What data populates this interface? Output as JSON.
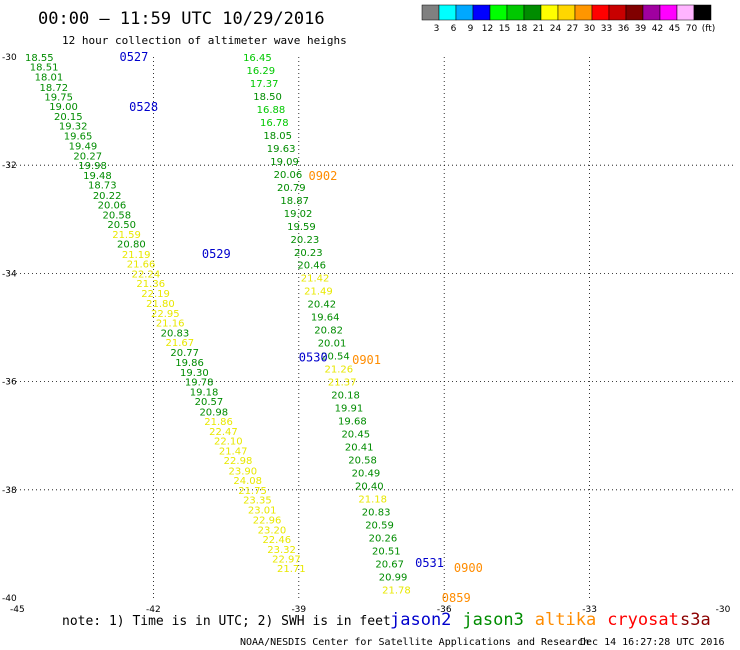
{
  "header": {
    "title": "00:00 — 11:59 UTC 10/29/2016",
    "subtitle": "12 hour collection of altimeter wave heighs"
  },
  "color_scale": {
    "colors": [
      "#808080",
      "#00ffff",
      "#00a8ff",
      "#0000ff",
      "#00ff00",
      "#00c800",
      "#008c00",
      "#ffff00",
      "#ffd700",
      "#ff9600",
      "#ff0000",
      "#c80000",
      "#800000",
      "#a000a0",
      "#ff00ff",
      "#ffb4ff",
      "#000000"
    ],
    "labels": [
      "3",
      "6",
      "9",
      "12",
      "15",
      "18",
      "21",
      "24",
      "27",
      "30",
      "33",
      "36",
      "39",
      "42",
      "45",
      "70",
      "(ft)"
    ]
  },
  "note": "note: 1) Time is in UTC; 2) SWH is in feet",
  "legend": [
    {
      "name": "jason2",
      "color": "#0000cc"
    },
    {
      "name": "jason3",
      "color": "#008c00"
    },
    {
      "name": "altika",
      "color": "#ff8c00"
    },
    {
      "name": "cryosat",
      "color": "#ff0000"
    },
    {
      "name": "s3a",
      "color": "#8b0000"
    }
  ],
  "credit": "NOAA/NESDIS Center for Satellite Applications and Research",
  "timestamp": "Dec 14 16:27:28 UTC 2016",
  "chart_data": {
    "type": "scatter",
    "xlim": [
      -45,
      -30
    ],
    "ylim": [
      -40,
      -30
    ],
    "x_ticks": [
      -45,
      -42,
      -39,
      -36,
      -33,
      -30
    ],
    "x_tick_labels": [
      "-45",
      "-42",
      "-39",
      "-36",
      "-33",
      "-30"
    ],
    "y_ticks": [
      -30,
      -32,
      -34,
      -36,
      -38,
      -40
    ],
    "y_tick_labels": [
      "-30",
      "-32",
      "-34",
      "-36",
      "-38",
      "-40"
    ],
    "grid": true,
    "track_labels": [
      {
        "text": "0527",
        "lon": -42.7,
        "lat": -30.0,
        "color": "#0000cc"
      },
      {
        "text": "0528",
        "lon": -42.5,
        "lat": -30.92,
        "color": "#0000cc"
      },
      {
        "text": "0529",
        "lon": -41.0,
        "lat": -33.64,
        "color": "#0000cc"
      },
      {
        "text": "0530",
        "lon": -39.0,
        "lat": -35.55,
        "color": "#0000cc"
      },
      {
        "text": "0531",
        "lon": -36.6,
        "lat": -39.35,
        "color": "#0000cc"
      },
      {
        "text": "0902",
        "lon": -38.8,
        "lat": -32.2,
        "color": "#ff8c00"
      },
      {
        "text": "0901",
        "lon": -37.9,
        "lat": -35.6,
        "color": "#ff8c00"
      },
      {
        "text": "0900",
        "lon": -35.8,
        "lat": -39.45,
        "color": "#ff8c00"
      },
      {
        "text": "0859",
        "lon": -36.05,
        "lat": -40.0,
        "color": "#ff8c00"
      }
    ],
    "series": [
      {
        "name": "",
        "points": [
          {
            "lon": -44.65,
            "lat": -30.0,
            "value": "18.55",
            "color": "#008c00"
          },
          {
            "lon": -44.55,
            "lat": -30.18,
            "value": "18.51",
            "color": "#008c00"
          },
          {
            "lon": -44.45,
            "lat": -30.36,
            "value": "18.01",
            "color": "#008c00"
          },
          {
            "lon": -44.35,
            "lat": -30.55,
            "value": "18.72",
            "color": "#008c00"
          },
          {
            "lon": -44.25,
            "lat": -30.73,
            "value": "19.75",
            "color": "#008c00"
          },
          {
            "lon": -44.15,
            "lat": -30.91,
            "value": "19.00",
            "color": "#008c00"
          },
          {
            "lon": -44.05,
            "lat": -31.09,
            "value": "20.15",
            "color": "#008c00"
          },
          {
            "lon": -43.95,
            "lat": -31.27,
            "value": "19.32",
            "color": "#008c00"
          },
          {
            "lon": -43.85,
            "lat": -31.45,
            "value": "19.65",
            "color": "#008c00"
          },
          {
            "lon": -43.75,
            "lat": -31.64,
            "value": "19.49",
            "color": "#008c00"
          },
          {
            "lon": -43.65,
            "lat": -31.82,
            "value": "20.27",
            "color": "#008c00"
          },
          {
            "lon": -43.55,
            "lat": -32.0,
            "value": "19.98",
            "color": "#008c00"
          },
          {
            "lon": -43.45,
            "lat": -32.18,
            "value": "19.48",
            "color": "#008c00"
          },
          {
            "lon": -43.35,
            "lat": -32.36,
            "value": "18.73",
            "color": "#008c00"
          },
          {
            "lon": -43.25,
            "lat": -32.55,
            "value": "20.22",
            "color": "#008c00"
          },
          {
            "lon": -43.15,
            "lat": -32.73,
            "value": "20.06",
            "color": "#008c00"
          },
          {
            "lon": -43.05,
            "lat": -32.91,
            "value": "20.58",
            "color": "#008c00"
          },
          {
            "lon": -42.95,
            "lat": -33.09,
            "value": "20.50",
            "color": "#008c00"
          },
          {
            "lon": -42.85,
            "lat": -33.27,
            "value": "21.59",
            "color": "#e8e800"
          },
          {
            "lon": -42.75,
            "lat": -33.45,
            "value": "20.80",
            "color": "#008c00"
          },
          {
            "lon": -42.65,
            "lat": -33.64,
            "value": "21.19",
            "color": "#e8e800"
          },
          {
            "lon": -42.55,
            "lat": -33.82,
            "value": "21.66",
            "color": "#e8e800"
          },
          {
            "lon": -42.45,
            "lat": -34.0,
            "value": "22.24",
            "color": "#e8e800"
          },
          {
            "lon": -42.35,
            "lat": -34.18,
            "value": "21.36",
            "color": "#e8e800"
          },
          {
            "lon": -42.25,
            "lat": -34.36,
            "value": "22.19",
            "color": "#e8e800"
          },
          {
            "lon": -42.15,
            "lat": -34.55,
            "value": "21.80",
            "color": "#e8e800"
          },
          {
            "lon": -42.05,
            "lat": -34.73,
            "value": "22.95",
            "color": "#e8e800"
          },
          {
            "lon": -41.95,
            "lat": -34.91,
            "value": "21.16",
            "color": "#e8e800"
          },
          {
            "lon": -41.85,
            "lat": -35.09,
            "value": "20.83",
            "color": "#008c00"
          },
          {
            "lon": -41.75,
            "lat": -35.27,
            "value": "21.67",
            "color": "#e8e800"
          },
          {
            "lon": -41.65,
            "lat": -35.45,
            "value": "20.77",
            "color": "#008c00"
          },
          {
            "lon": -41.55,
            "lat": -35.64,
            "value": "19.86",
            "color": "#008c00"
          },
          {
            "lon": -41.45,
            "lat": -35.82,
            "value": "19.30",
            "color": "#008c00"
          },
          {
            "lon": -41.35,
            "lat": -36.0,
            "value": "19.78",
            "color": "#008c00"
          },
          {
            "lon": -41.25,
            "lat": -36.18,
            "value": "19.18",
            "color": "#008c00"
          },
          {
            "lon": -41.15,
            "lat": -36.36,
            "value": "20.57",
            "color": "#008c00"
          },
          {
            "lon": -41.05,
            "lat": -36.55,
            "value": "20.98",
            "color": "#008c00"
          },
          {
            "lon": -40.95,
            "lat": -36.73,
            "value": "21.86",
            "color": "#e8e800"
          },
          {
            "lon": -40.85,
            "lat": -36.91,
            "value": "22.47",
            "color": "#e8e800"
          },
          {
            "lon": -40.75,
            "lat": -37.09,
            "value": "22.10",
            "color": "#e8e800"
          },
          {
            "lon": -40.65,
            "lat": -37.27,
            "value": "21.47",
            "color": "#e8e800"
          },
          {
            "lon": -40.55,
            "lat": -37.45,
            "value": "22.98",
            "color": "#e8e800"
          },
          {
            "lon": -40.45,
            "lat": -37.64,
            "value": "23.90",
            "color": "#e8e800"
          },
          {
            "lon": -40.35,
            "lat": -37.82,
            "value": "24.08",
            "color": "#e8e800"
          },
          {
            "lon": -40.25,
            "lat": -38.0,
            "value": "21.75",
            "color": "#e8e800"
          },
          {
            "lon": -40.15,
            "lat": -38.18,
            "value": "23.35",
            "color": "#e8e800"
          },
          {
            "lon": -40.05,
            "lat": -38.36,
            "value": "23.01",
            "color": "#e8e800"
          },
          {
            "lon": -39.95,
            "lat": -38.55,
            "value": "22.96",
            "color": "#e8e800"
          },
          {
            "lon": -39.85,
            "lat": -38.73,
            "value": "23.20",
            "color": "#e8e800"
          },
          {
            "lon": -39.75,
            "lat": -38.91,
            "value": "22.46",
            "color": "#e8e800"
          },
          {
            "lon": -39.65,
            "lat": -39.09,
            "value": "23.32",
            "color": "#e8e800"
          },
          {
            "lon": -39.55,
            "lat": -39.27,
            "value": "22.97",
            "color": "#e8e800"
          },
          {
            "lon": -39.45,
            "lat": -39.45,
            "value": "21.71",
            "color": "#e8e800"
          }
        ]
      },
      {
        "name": "",
        "points": [
          {
            "lon": -40.15,
            "lat": -30.0,
            "value": "16.45",
            "color": "#00c800"
          },
          {
            "lon": -40.08,
            "lat": -30.24,
            "value": "16.29",
            "color": "#00c800"
          },
          {
            "lon": -40.01,
            "lat": -30.48,
            "value": "17.37",
            "color": "#00c800"
          },
          {
            "lon": -39.94,
            "lat": -30.72,
            "value": "18.50",
            "color": "#008c00"
          },
          {
            "lon": -39.87,
            "lat": -30.96,
            "value": "16.88",
            "color": "#00c800"
          },
          {
            "lon": -39.8,
            "lat": -31.2,
            "value": "16.78",
            "color": "#00c800"
          },
          {
            "lon": -39.73,
            "lat": -31.44,
            "value": "18.05",
            "color": "#008c00"
          },
          {
            "lon": -39.66,
            "lat": -31.68,
            "value": "19.63",
            "color": "#008c00"
          },
          {
            "lon": -39.59,
            "lat": -31.92,
            "value": "19.09",
            "color": "#008c00"
          },
          {
            "lon": -39.52,
            "lat": -32.16,
            "value": "20.06",
            "color": "#008c00"
          },
          {
            "lon": -39.45,
            "lat": -32.4,
            "value": "20.79",
            "color": "#008c00"
          },
          {
            "lon": -39.38,
            "lat": -32.64,
            "value": "18.87",
            "color": "#008c00"
          },
          {
            "lon": -39.31,
            "lat": -32.88,
            "value": "19.02",
            "color": "#008c00"
          },
          {
            "lon": -39.24,
            "lat": -33.12,
            "value": "19.59",
            "color": "#008c00"
          },
          {
            "lon": -39.17,
            "lat": -33.36,
            "value": "20.23",
            "color": "#008c00"
          },
          {
            "lon": -39.1,
            "lat": -33.6,
            "value": "20.23",
            "color": "#008c00"
          },
          {
            "lon": -39.03,
            "lat": -33.84,
            "value": "20.46",
            "color": "#008c00"
          },
          {
            "lon": -38.96,
            "lat": -34.08,
            "value": "21.42",
            "color": "#e8e800"
          },
          {
            "lon": -38.89,
            "lat": -34.32,
            "value": "21.49",
            "color": "#e8e800"
          },
          {
            "lon": -38.82,
            "lat": -34.56,
            "value": "20.42",
            "color": "#008c00"
          },
          {
            "lon": -38.75,
            "lat": -34.8,
            "value": "19.64",
            "color": "#008c00"
          },
          {
            "lon": -38.68,
            "lat": -35.04,
            "value": "20.82",
            "color": "#008c00"
          },
          {
            "lon": -38.61,
            "lat": -35.28,
            "value": "20.01",
            "color": "#008c00"
          },
          {
            "lon": -38.54,
            "lat": -35.52,
            "value": "20.54",
            "color": "#008c00"
          },
          {
            "lon": -38.47,
            "lat": -35.76,
            "value": "21.26",
            "color": "#e8e800"
          },
          {
            "lon": -38.4,
            "lat": -36.0,
            "value": "21.37",
            "color": "#e8e800"
          },
          {
            "lon": -38.33,
            "lat": -36.24,
            "value": "20.18",
            "color": "#008c00"
          },
          {
            "lon": -38.26,
            "lat": -36.48,
            "value": "19.91",
            "color": "#008c00"
          },
          {
            "lon": -38.19,
            "lat": -36.72,
            "value": "19.68",
            "color": "#008c00"
          },
          {
            "lon": -38.12,
            "lat": -36.96,
            "value": "20.45",
            "color": "#008c00"
          },
          {
            "lon": -38.05,
            "lat": -37.2,
            "value": "20.41",
            "color": "#008c00"
          },
          {
            "lon": -37.98,
            "lat": -37.44,
            "value": "20.58",
            "color": "#008c00"
          },
          {
            "lon": -37.91,
            "lat": -37.68,
            "value": "20.49",
            "color": "#008c00"
          },
          {
            "lon": -37.84,
            "lat": -37.92,
            "value": "20.40",
            "color": "#008c00"
          },
          {
            "lon": -37.77,
            "lat": -38.16,
            "value": "21.18",
            "color": "#e8e800"
          },
          {
            "lon": -37.7,
            "lat": -38.4,
            "value": "20.83",
            "color": "#008c00"
          },
          {
            "lon": -37.63,
            "lat": -38.64,
            "value": "20.59",
            "color": "#008c00"
          },
          {
            "lon": -37.56,
            "lat": -38.88,
            "value": "20.26",
            "color": "#008c00"
          },
          {
            "lon": -37.49,
            "lat": -39.12,
            "value": "20.51",
            "color": "#008c00"
          },
          {
            "lon": -37.42,
            "lat": -39.36,
            "value": "20.67",
            "color": "#008c00"
          },
          {
            "lon": -37.35,
            "lat": -39.6,
            "value": "20.99",
            "color": "#008c00"
          },
          {
            "lon": -37.28,
            "lat": -39.84,
            "value": "21.78",
            "color": "#e8e800"
          }
        ]
      }
    ]
  }
}
